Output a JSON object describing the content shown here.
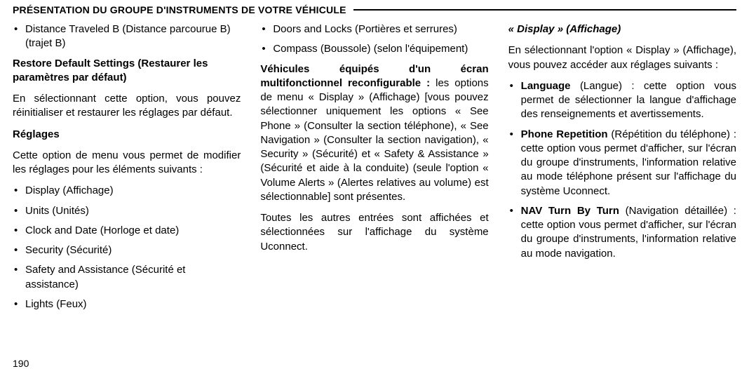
{
  "header": {
    "title": "PRÉSENTATION DU GROUPE D'INSTRUMENTS DE VOTRE VÉHICULE"
  },
  "col1": {
    "bullet1": "Distance Traveled B (Distance parcourue B) (trajet B)",
    "restoreHeading": "Restore Default Settings (Restaurer les paramètres par défaut)",
    "restorePara": "En sélectionnant cette option, vous pouvez réinitialiser et restaurer les réglages par défaut.",
    "reglagesHeading": "Réglages",
    "reglagesPara": "Cette option de menu vous permet de modifier les réglages pour les éléments suivants :",
    "b_display": "Display (Affichage)",
    "b_units": "Units (Unités)",
    "b_clock": "Clock and Date (Horloge et date)",
    "b_security": "Security (Sécurité)",
    "b_safety": "Safety and Assistance (Sécurité et assistance)",
    "b_lights": "Lights (Feux)"
  },
  "col2": {
    "b_doors": "Doors and Locks (Portières et serrures)",
    "b_compass": "Compass (Boussole) (selon l'équipement)",
    "multiHeading": "Véhicules équipés d'un écran multifonctionnel reconfigurable : ",
    "multiRest": "les options de menu « Display » (Affichage) [vous pouvez sélectionner uniquement les options « See Phone » (Consulter la section téléphone), « See Navigation » (Consulter la section navigation), « Security » (Sécurité) et « Safety & Assistance » (Sécurité et aide à la conduite) (seule l'option « Volume Alerts » (Alertes relatives au volume) est sélectionnable] sont présentes.",
    "multiPara2": "Toutes les autres entrées sont affichées et sélectionnées sur l'affichage du système Uconnect."
  },
  "col3": {
    "displayHeading": "« Display » (Affichage)",
    "displayPara": "En sélectionnant l'option « Display » (Affichage), vous pouvez accéder aux réglages suivants :",
    "lang_bold": "Language",
    "lang_rest": " (Langue) : cette option vous permet de sélectionner la langue d'affichage des renseignements et avertissements.",
    "phone_bold": "Phone Repetition",
    "phone_rest": " (Répétition du téléphone) : cette option vous permet d'afficher, sur l'écran du groupe d'instruments, l'information relative au mode téléphone présent sur l'affichage du système Uconnect.",
    "nav_bold": "NAV Turn By Turn",
    "nav_rest": " (Navigation détaillée) : cette option vous permet d'afficher, sur l'écran du groupe d'instruments, l'information relative au mode navigation."
  },
  "pageNumber": "190"
}
